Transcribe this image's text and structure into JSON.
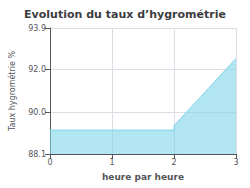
{
  "chart_data": {
    "type": "line",
    "title": "Evolution du taux d’hygrométrie",
    "xlabel": "heure par heure",
    "ylabel": "Taux hygrométrie %",
    "x": [
      0,
      2,
      2,
      3
    ],
    "values": [
      89.2,
      89.2,
      89.4,
      92.5
    ],
    "color": "#7fd4ea",
    "xlim": [
      0,
      3
    ],
    "xticks": [
      0,
      1,
      2,
      3
    ],
    "ylim": [
      88.1,
      93.9
    ],
    "yticks": [
      88.1,
      {
        "value": 90,
        "label": "90.0"
      },
      {
        "value": 92,
        "label": "92.0"
      },
      93.9
    ],
    "grid": true
  }
}
